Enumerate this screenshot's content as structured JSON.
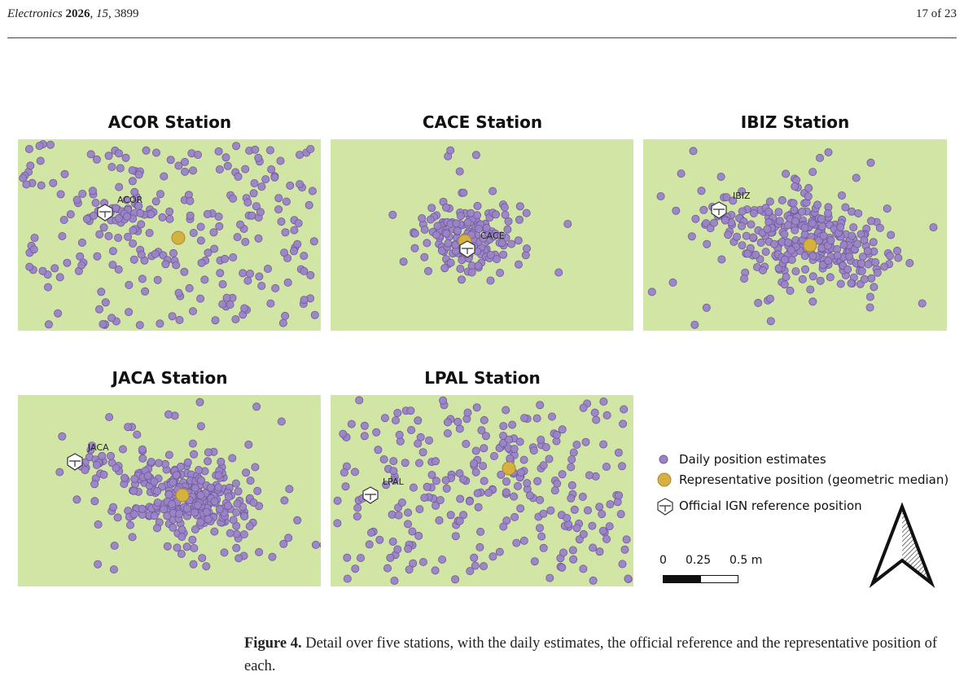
{
  "header": {
    "journal": "Electronics",
    "year": "2026",
    "volume": "15",
    "article": "3899",
    "page": "17 of 23"
  },
  "figure": {
    "caption_label": "Figure 4.",
    "caption_text": "Detail over five stations, with the daily estimates, the official reference and the representative position of each."
  },
  "panels": [
    {
      "title": "ACOR Station",
      "station_label": "ACOR"
    },
    {
      "title": "CACE Station",
      "station_label": "CACE"
    },
    {
      "title": "IBIZ Station",
      "station_label": "IBIZ"
    },
    {
      "title": "JACA Station",
      "station_label": "JACA"
    },
    {
      "title": "LPAL Station",
      "station_label": "LPAL"
    }
  ],
  "legend": {
    "estimates": "Daily position estimates",
    "median": "Representative position (geometric median)",
    "reference": "Official IGN reference position"
  },
  "scale": {
    "labels": [
      "0",
      "0.25",
      "0.5 m"
    ]
  },
  "colors": {
    "map_background": "#d1e5a5",
    "estimate_point": "#9a83c6",
    "estimate_edge": "#6d5a9b",
    "median_point": "#d6b13f",
    "reference_marker": "#ffffff"
  },
  "icons": {
    "reference": "house-pin-icon",
    "north": "north-arrow-icon"
  },
  "chart_data": [
    {
      "type": "scatter",
      "title": "ACOR Station",
      "point_label": "ACOR",
      "spread": "wide, sparse",
      "series": [
        {
          "name": "Daily position estimates",
          "count": 300
        }
      ]
    },
    {
      "type": "scatter",
      "title": "CACE Station",
      "point_label": "CACE",
      "spread": "tight cluster",
      "series": [
        {
          "name": "Daily position estimates",
          "count": 180
        }
      ]
    },
    {
      "type": "scatter",
      "title": "IBIZ Station",
      "point_label": "IBIZ",
      "spread": "dense elongated cluster",
      "series": [
        {
          "name": "Daily position estimates",
          "count": 330
        }
      ]
    },
    {
      "type": "scatter",
      "title": "JACA Station",
      "point_label": "JACA",
      "spread": "dense elongated cluster",
      "series": [
        {
          "name": "Daily position estimates",
          "count": 330
        }
      ]
    },
    {
      "type": "scatter",
      "title": "LPAL Station",
      "point_label": "LPAL",
      "spread": "wide, sparse",
      "series": [
        {
          "name": "Daily position estimates",
          "count": 300
        }
      ]
    }
  ]
}
